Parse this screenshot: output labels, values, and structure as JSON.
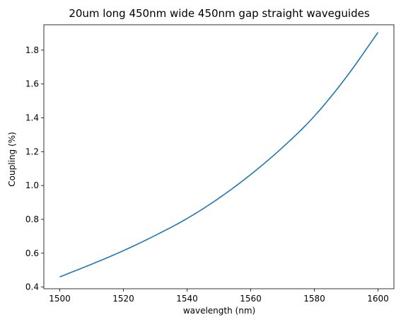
{
  "chart_data": {
    "type": "line",
    "title": "20um long 450nm wide 450nm gap straight waveguides",
    "xlabel": "wavelength (nm)",
    "ylabel": "Coupling (%)",
    "xlim": [
      1495,
      1605
    ],
    "ylim": [
      0.39,
      1.95
    ],
    "xticks": [
      1500,
      1520,
      1540,
      1560,
      1580,
      1600
    ],
    "xtick_labels": [
      "1500",
      "1520",
      "1540",
      "1560",
      "1580",
      "1600"
    ],
    "yticks": [
      0.4,
      0.6,
      0.8,
      1.0,
      1.2,
      1.4,
      1.6,
      1.8
    ],
    "ytick_labels": [
      "0.4",
      "0.6",
      "0.8",
      "1.0",
      "1.2",
      "1.4",
      "1.6",
      "1.8"
    ],
    "grid": false,
    "series": [
      {
        "color": "#1f77b4",
        "x": [
          1500,
          1510,
          1520,
          1530,
          1540,
          1550,
          1560,
          1570,
          1580,
          1590,
          1600
        ],
        "values": [
          0.46,
          0.535,
          0.615,
          0.705,
          0.805,
          0.925,
          1.065,
          1.225,
          1.41,
          1.64,
          1.905
        ]
      }
    ]
  }
}
